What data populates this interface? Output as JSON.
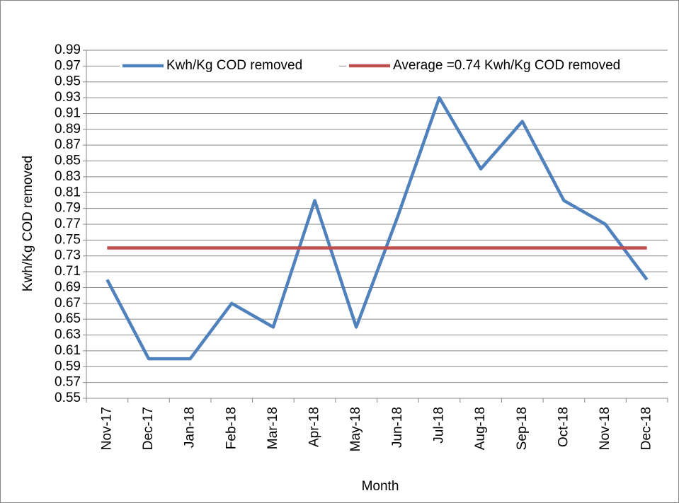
{
  "chart_data": {
    "type": "line",
    "x_label": "Month",
    "y_label": "Kwh/Kg COD removed",
    "categories": [
      "Nov-17",
      "Dec-17",
      "Jan-18",
      "Feb-18",
      "Mar-18",
      "Apr-18",
      "May-18",
      "Jun-18",
      "Jul-18",
      "Aug-18",
      "Sep-18",
      "Oct-18",
      "Nov-18",
      "Dec-18"
    ],
    "series": [
      {
        "name": "Kwh/Kg COD removed",
        "color": "#4f81bd",
        "values": [
          0.7,
          0.6,
          0.6,
          0.67,
          0.64,
          0.8,
          0.64,
          0.78,
          0.93,
          0.84,
          0.9,
          0.8,
          0.77,
          0.7
        ]
      },
      {
        "name": "Average =0.74 Kwh/Kg COD removed",
        "color": "#c0504d",
        "values": [
          0.74,
          0.74,
          0.74,
          0.74,
          0.74,
          0.74,
          0.74,
          0.74,
          0.74,
          0.74,
          0.74,
          0.74,
          0.74,
          0.74
        ]
      }
    ],
    "ylim": [
      0.55,
      0.99
    ],
    "yticks": [
      0.55,
      0.57,
      0.59,
      0.61,
      0.63,
      0.65,
      0.67,
      0.69,
      0.71,
      0.73,
      0.75,
      0.77,
      0.79,
      0.81,
      0.83,
      0.85,
      0.87,
      0.89,
      0.91,
      0.93,
      0.95,
      0.97,
      0.99
    ],
    "grid": true,
    "legend": "top"
  }
}
